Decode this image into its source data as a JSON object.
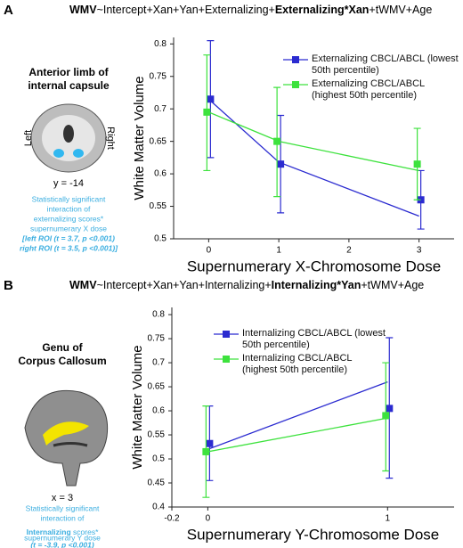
{
  "panels": [
    {
      "label": "A",
      "title_parts": [
        "WMV",
        "~Intercept+Xan+Yan+Externalizing+",
        "Externalizing*Xan",
        "+tWMV+Age"
      ],
      "region": [
        "Anterior limb of",
        "internal capsule"
      ],
      "side_left": "Left",
      "side_right": "Right",
      "slice": "y = -14",
      "caption": [
        "Statistically significant",
        "interaction of",
        "externalizing scores*",
        "supernumerary X dose",
        "[left ROI (t = 3.7, p <0.001)",
        "right ROI (t = 3.5, p <0.001)]"
      ]
    },
    {
      "label": "B",
      "title_parts": [
        "WMV",
        "~Intercept+Xan+Yan+Internalizing+",
        "Internalizing*Yan",
        "+tWMV+Age"
      ],
      "region": [
        "Genu of",
        "Corpus Callosum"
      ],
      "slice": "x = 3",
      "caption": [
        "Statistically significant",
        "interaction of",
        "Internalizing",
        " scores*",
        "supernumerary Y dose",
        "(t = -3.9, p <0.001)"
      ]
    }
  ],
  "chart_data": [
    {
      "type": "line",
      "x_label": "Supernumerary X-Chromosome Dose",
      "y_label": "White Matter Volume",
      "x": [
        0,
        1,
        3
      ],
      "xlim": [
        -0.5,
        3.5
      ],
      "xticks": [
        0,
        1,
        2,
        3
      ],
      "ylim": [
        0.5,
        0.81
      ],
      "yticks": [
        0.5,
        0.55,
        0.6,
        0.65,
        0.7,
        0.75,
        0.8
      ],
      "series": [
        {
          "name": "Externalizing CBCL/ABCL (lowest 50th percentile)",
          "color": "#2b2bd0",
          "values": [
            0.715,
            0.615,
            0.56
          ],
          "fit": [
            0.715,
            0.618,
            0.535
          ],
          "error_low": [
            0.625,
            0.54,
            0.515
          ],
          "error_high": [
            0.805,
            0.69,
            0.605
          ]
        },
        {
          "name": "Externalizing CBCL/ABCL (highest 50th percentile)",
          "color": "#3de23d",
          "values": [
            0.695,
            0.65,
            0.615
          ],
          "fit": [
            0.695,
            0.65,
            0.605
          ],
          "error_low": [
            0.605,
            0.565,
            0.56
          ],
          "error_high": [
            0.783,
            0.733,
            0.67
          ]
        }
      ]
    },
    {
      "type": "line",
      "x_label": "Supernumerary Y-Chromosome Dose",
      "y_label": "White Matter Volume",
      "x": [
        0,
        1
      ],
      "xlim": [
        -0.2,
        1.37
      ],
      "xticks": [
        -0.2,
        0,
        1
      ],
      "ylim": [
        0.4,
        0.815
      ],
      "yticks": [
        0.4,
        0.45,
        0.5,
        0.55,
        0.6,
        0.65,
        0.7,
        0.75,
        0.8
      ],
      "series": [
        {
          "name": "Internalizing CBCL/ABCL (lowest 50th percentile)",
          "color": "#2b2bd0",
          "values": [
            0.532,
            0.605
          ],
          "fit": [
            0.52,
            0.66
          ],
          "error_low": [
            0.455,
            0.46
          ],
          "error_high": [
            0.61,
            0.752
          ]
        },
        {
          "name": "Internalizing CBCL/ABCL (highest 50th percentile)",
          "color": "#3de23d",
          "values": [
            0.515,
            0.59
          ],
          "fit": [
            0.515,
            0.585
          ],
          "error_low": [
            0.42,
            0.475
          ],
          "error_high": [
            0.61,
            0.7
          ]
        }
      ]
    }
  ]
}
